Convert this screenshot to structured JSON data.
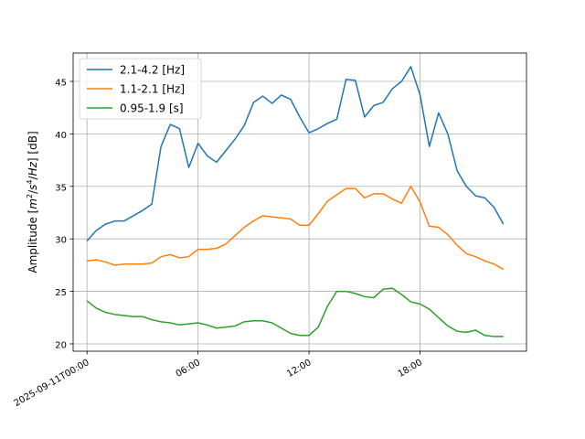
{
  "chart_data": {
    "type": "line",
    "ylabel_parts": [
      "Amplitude [",
      "m",
      "2",
      "/",
      "s",
      "4",
      "/",
      "Hz",
      "] [dB]"
    ],
    "x_unit": "hours since 2025-09-11T00:00",
    "xticks": [
      {
        "value": 0,
        "label": "2025-09-11T00:00"
      },
      {
        "value": 6,
        "label": "06:00"
      },
      {
        "value": 12,
        "label": "12:00"
      },
      {
        "value": 18,
        "label": "18:00"
      }
    ],
    "xlim": [
      -0.75,
      23.75
    ],
    "yticks": [
      20,
      25,
      30,
      35,
      40,
      45
    ],
    "ylim": [
      19.3,
      47.7
    ],
    "grid": true,
    "legend_position": "top-left",
    "x": [
      0,
      0.5,
      1,
      1.5,
      2,
      2.5,
      3,
      3.5,
      4,
      4.5,
      5,
      5.5,
      6,
      6.5,
      7,
      7.5,
      8,
      8.5,
      9,
      9.5,
      10,
      10.5,
      11,
      11.5,
      12,
      12.5,
      13,
      13.5,
      14,
      14.5,
      15,
      15.5,
      16,
      16.5,
      17,
      17.5,
      18,
      18.5,
      19,
      19.5,
      20,
      20.5,
      21,
      21.5,
      22,
      22.5
    ],
    "series": [
      {
        "name": "2.1-4.2 [Hz]",
        "color": "#1f77b4",
        "values": [
          29.8,
          30.8,
          31.4,
          31.7,
          31.7,
          32.2,
          32.7,
          33.3,
          38.8,
          40.9,
          40.5,
          36.8,
          39.1,
          37.9,
          37.3,
          38.4,
          39.5,
          40.8,
          43.0,
          43.6,
          42.9,
          43.7,
          43.3,
          41.6,
          40.1,
          40.5,
          41.0,
          41.4,
          45.2,
          45.1,
          41.6,
          42.7,
          43.0,
          44.3,
          45.0,
          46.4,
          43.7,
          38.8,
          42.0,
          40.0,
          36.5,
          35.0,
          34.1,
          33.9,
          33.0,
          31.4
        ]
      },
      {
        "name": "1.1-2.1 [Hz]",
        "color": "#ff7f0e",
        "values": [
          27.9,
          28.0,
          27.8,
          27.5,
          27.6,
          27.6,
          27.6,
          27.7,
          28.3,
          28.5,
          28.2,
          28.3,
          29.0,
          29.0,
          29.1,
          29.5,
          30.3,
          31.1,
          31.7,
          32.2,
          32.1,
          32.0,
          31.9,
          31.3,
          31.3,
          32.4,
          33.6,
          34.2,
          34.8,
          34.8,
          33.9,
          34.3,
          34.3,
          33.8,
          33.4,
          35.0,
          33.5,
          31.2,
          31.1,
          30.4,
          29.4,
          28.6,
          28.3,
          27.9,
          27.6,
          27.1
        ]
      },
      {
        "name": "0.95-1.9 [s]",
        "color": "#2ca02c",
        "values": [
          24.1,
          23.4,
          23.0,
          22.8,
          22.7,
          22.6,
          22.6,
          22.3,
          22.1,
          22.0,
          21.8,
          21.9,
          22.0,
          21.8,
          21.5,
          21.6,
          21.7,
          22.1,
          22.2,
          22.2,
          22.0,
          21.5,
          21.0,
          20.8,
          20.8,
          21.6,
          23.6,
          25.0,
          25.0,
          24.8,
          24.5,
          24.4,
          25.2,
          25.3,
          24.7,
          24.0,
          23.8,
          23.3,
          22.5,
          21.7,
          21.2,
          21.1,
          21.3,
          20.8,
          20.7,
          20.7
        ]
      }
    ]
  }
}
